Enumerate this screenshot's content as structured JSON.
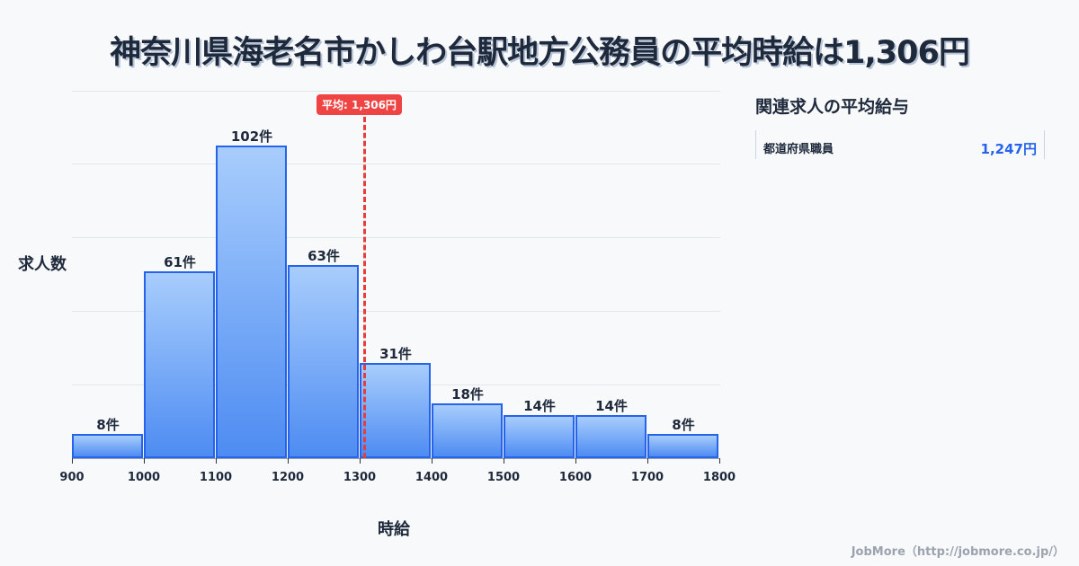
{
  "header": {
    "title": "神奈川県海老名市かしわ台駅地方公務員の平均時給は1,306円"
  },
  "chart": {
    "y_label": "求人数",
    "x_label": "時給",
    "average_badge": "平均: 1,306円",
    "bar_labels": [
      "8件",
      "61件",
      "102件",
      "63件",
      "31件",
      "18件",
      "14件",
      "14件",
      "8件"
    ],
    "tick_labels": [
      "900",
      "1000",
      "1100",
      "1200",
      "1300",
      "1400",
      "1500",
      "1600",
      "1700",
      "1800"
    ]
  },
  "sidebar": {
    "title": "関連求人の平均給与",
    "items": [
      {
        "name": "都道府県職員",
        "value": "1,247円"
      }
    ]
  },
  "footer": {
    "credit": "JobMore（http://jobmore.co.jp/）"
  },
  "colors": {
    "bar_fill_top": "#a8cdfc",
    "bar_fill_bottom": "#4e8cf2",
    "bar_border": "#2563eb",
    "average_line": "#e53e3e",
    "accent_value": "#2563eb"
  },
  "chart_data": {
    "type": "bar",
    "title": "神奈川県海老名市かしわ台駅地方公務員の平均時給は1,306円",
    "xlabel": "時給",
    "ylabel": "求人数",
    "categories": [
      "900-1000",
      "1000-1100",
      "1100-1200",
      "1200-1300",
      "1300-1400",
      "1400-1500",
      "1500-1600",
      "1600-1700",
      "1700-1800"
    ],
    "bin_edges": [
      900,
      1000,
      1100,
      1200,
      1300,
      1400,
      1500,
      1600,
      1700,
      1800
    ],
    "values": [
      8,
      61,
      102,
      63,
      31,
      18,
      14,
      14,
      8
    ],
    "value_labels": [
      "8件",
      "61件",
      "102件",
      "63件",
      "31件",
      "18件",
      "14件",
      "14件",
      "8件"
    ],
    "annotations": [
      {
        "type": "vline",
        "x": 1306,
        "label": "平均: 1,306円"
      }
    ],
    "ylim": [
      0,
      120
    ],
    "grid": true,
    "legend": null
  }
}
